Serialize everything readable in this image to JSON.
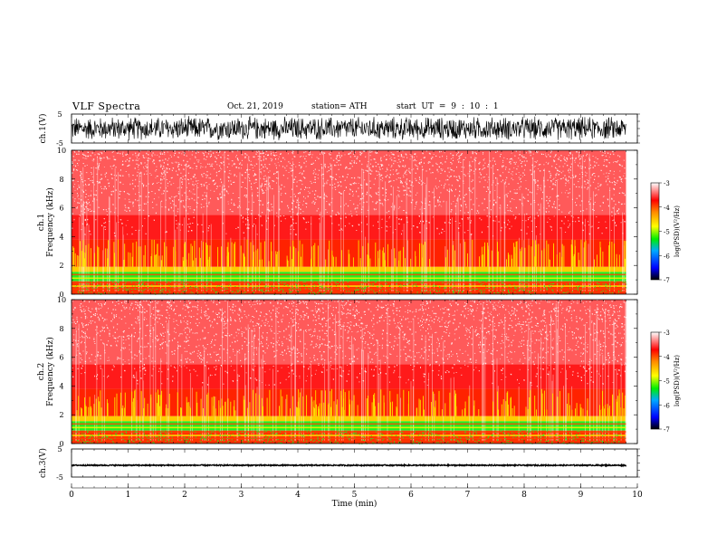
{
  "header": {
    "title": "VLF  Spectra",
    "date": "Oct. 21, 2019",
    "station": "station= ATH",
    "start": "start  UT  =    9  : 10 : 1"
  },
  "colors": {
    "red": "#ff1a1a",
    "yellow": "#ffee00",
    "green": "#22ee22",
    "waveform": "#000000"
  },
  "chart_data": [
    {
      "type": "line",
      "id": "ch1-waveform",
      "ylabel": "ch.1(V)",
      "ylim": [
        -5,
        5
      ],
      "yticks": [
        "5",
        "-5"
      ],
      "x": [
        0,
        9.8
      ],
      "amplitude_range": [
        -4.5,
        4.5
      ]
    },
    {
      "type": "heatmap",
      "id": "ch1-spectrogram",
      "ylabel_line1": "ch.1",
      "ylabel_line2": "Frequency  (kHz)",
      "ylim": [
        0,
        10
      ],
      "yticks": [
        "0",
        "2",
        "4",
        "6",
        "8",
        "10"
      ],
      "x": [
        0,
        9.8
      ],
      "colorbar": {
        "label": "log(PSD)(V²/Hz)",
        "range": [
          -7,
          -3
        ],
        "ticks": [
          "-3",
          "-4",
          "-5",
          "-6",
          "-7"
        ]
      }
    },
    {
      "type": "heatmap",
      "id": "ch2-spectrogram",
      "ylabel_line1": "ch.2",
      "ylabel_line2": "Frequency  (kHz)",
      "ylim": [
        0,
        10
      ],
      "yticks": [
        "0",
        "2",
        "4",
        "6",
        "8",
        "10"
      ],
      "x": [
        0,
        9.8
      ],
      "colorbar": {
        "label": "log(PSD)(V²/Hz)",
        "range": [
          -7,
          -3
        ],
        "ticks": [
          "-3",
          "-4",
          "-5",
          "-6",
          "-7"
        ]
      }
    },
    {
      "type": "line",
      "id": "ch3-waveform",
      "ylabel": "ch.3(V)",
      "ylim": [
        -5,
        5
      ],
      "yticks": [
        "5",
        "-5"
      ],
      "x": [
        0,
        9.8
      ],
      "amplitude_range": [
        -1.0,
        -0.6
      ],
      "xlabel": "Time  (min)",
      "xlim": [
        0,
        10
      ],
      "xticks": [
        "0",
        "1",
        "2",
        "3",
        "4",
        "5",
        "6",
        "7",
        "8",
        "9",
        "10"
      ]
    }
  ]
}
